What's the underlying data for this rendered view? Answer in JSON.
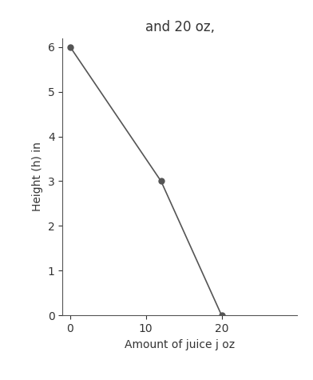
{
  "chart_data": {
    "type": "line",
    "title": "and 20 oz,",
    "x_label": "Amount of juice j oz",
    "y_label": "Height (h) in",
    "x": [
      0,
      12,
      20
    ],
    "values": [
      6,
      3,
      0
    ],
    "color": "#555555",
    "marker": "o",
    "line_style": "solid",
    "xlim": [
      -1,
      30
    ],
    "xticks": [
      0,
      10,
      20
    ],
    "ylim": [
      0,
      6.2
    ],
    "yticks": [
      0,
      1,
      2,
      3,
      4,
      5,
      6
    ],
    "grid": false
  }
}
